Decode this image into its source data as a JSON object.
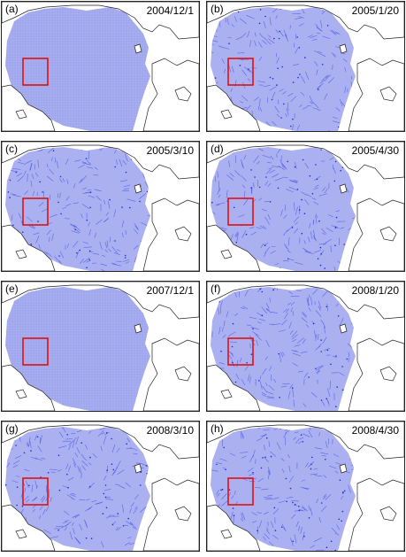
{
  "panels": [
    {
      "label": "(a)",
      "date": "2004/12/1",
      "style": "grid"
    },
    {
      "label": "(b)",
      "date": "2005/1/20",
      "style": "drift"
    },
    {
      "label": "(c)",
      "date": "2005/3/10",
      "style": "drift"
    },
    {
      "label": "(d)",
      "date": "2005/4/30",
      "style": "drift"
    },
    {
      "label": "(e)",
      "date": "2007/12/1",
      "style": "grid"
    },
    {
      "label": "(f)",
      "date": "2008/1/20",
      "style": "drift"
    },
    {
      "label": "(g)",
      "date": "2008/3/10",
      "style": "drift"
    },
    {
      "label": "(h)",
      "date": "2008/4/30",
      "style": "drift"
    }
  ],
  "colors": {
    "ice": "#aab0f0",
    "ice_grid_line": "#8890e8",
    "drift_line": "#3c46e6",
    "drift_dot": "#1e28dc",
    "land": "#ffffff",
    "coast": "#222222",
    "box": "#e01010"
  }
}
